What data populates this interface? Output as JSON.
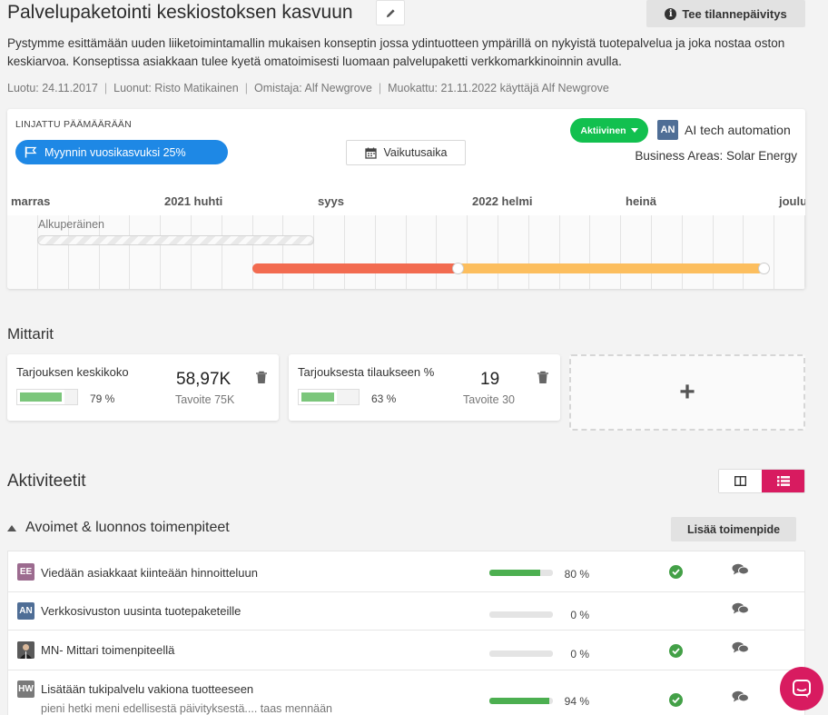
{
  "header": {
    "title": "Palvelupaketointi keskiostoksen kasvuun",
    "status_update_label": "Tee tilannepäivitys",
    "description": "Pystymme esittämään uuden liiketoimintamallin mukaisen konseptin jossa ydintuotteen ympärillä on nykyistä tuotepalvelua ja joka nostaa oston keskiarvoa. Konseptissa asiakkaan tulee kyetä omatoimisesti luomaan palvelupaketti verkkomarkkinoinnin avulla.",
    "meta": {
      "created": "Luotu: 24.11.2017",
      "creator": "Luonut: Risto Matikainen",
      "owner": "Omistaja: Alf Newgrove",
      "modified": "Muokattu: 21.11.2022 käyttäjä Alf Newgrove"
    }
  },
  "timeline": {
    "linked_label": "LINJATTU PÄÄMÄÄRÄÄN",
    "goal_label": "Myynnin vuosikasvuksi 25%",
    "impact_label": "Vaikutusaika",
    "status_label": "Aktiivinen",
    "org_initials": "AN",
    "org_name": "AI tech automation",
    "business_areas": "Business Areas: Solar Energy",
    "months": [
      "marras",
      "2021 huhti",
      "syys",
      "2022 helmi",
      "heinä",
      "joulu"
    ],
    "original_label": "Alkuperäinen"
  },
  "metrics": {
    "heading": "Mittarit",
    "items": [
      {
        "name": "Tarjouksen keskikoko",
        "value": "58,97K",
        "target": "Tavoite 75K",
        "percent_label": "79 %",
        "percent": 79
      },
      {
        "name": "Tarjouksesta tilaukseen %",
        "value": "19",
        "target": "Tavoite 30",
        "percent_label": "63 %",
        "percent": 63
      }
    ],
    "add_symbol": "+"
  },
  "activities": {
    "heading": "Aktiviteetit",
    "group_label": "Avoimet & luonnos toimenpiteet",
    "add_action_label": "Lisää toimenpide",
    "rows": [
      {
        "initials": "EE",
        "avatar_color": "#9c6b8f",
        "title": "Viedään asiakkaat kiinteään hinnoitteluun",
        "subtitle": "",
        "percent": 80,
        "percent_label": "80 %",
        "done": true
      },
      {
        "initials": "AN",
        "avatar_color": "#4f6e96",
        "title": "Verkkosivuston uusinta tuotepaketeille",
        "subtitle": "",
        "percent": 0,
        "percent_label": "0 %",
        "done": false
      },
      {
        "initials": "",
        "avatar_color": "#3a3a3a",
        "title": "MN- Mittari toimenpiteellä",
        "subtitle": "",
        "percent": 0,
        "percent_label": "0 %",
        "done": true
      },
      {
        "initials": "HW",
        "avatar_color": "#7a7a7a",
        "title": "Lisätään tukipalvelu vakiona tuotteeseen",
        "subtitle": "pieni hetki meni edellisestä päivityksestä.... taas mennään",
        "percent": 94,
        "percent_label": "94 %",
        "done": true
      }
    ]
  }
}
